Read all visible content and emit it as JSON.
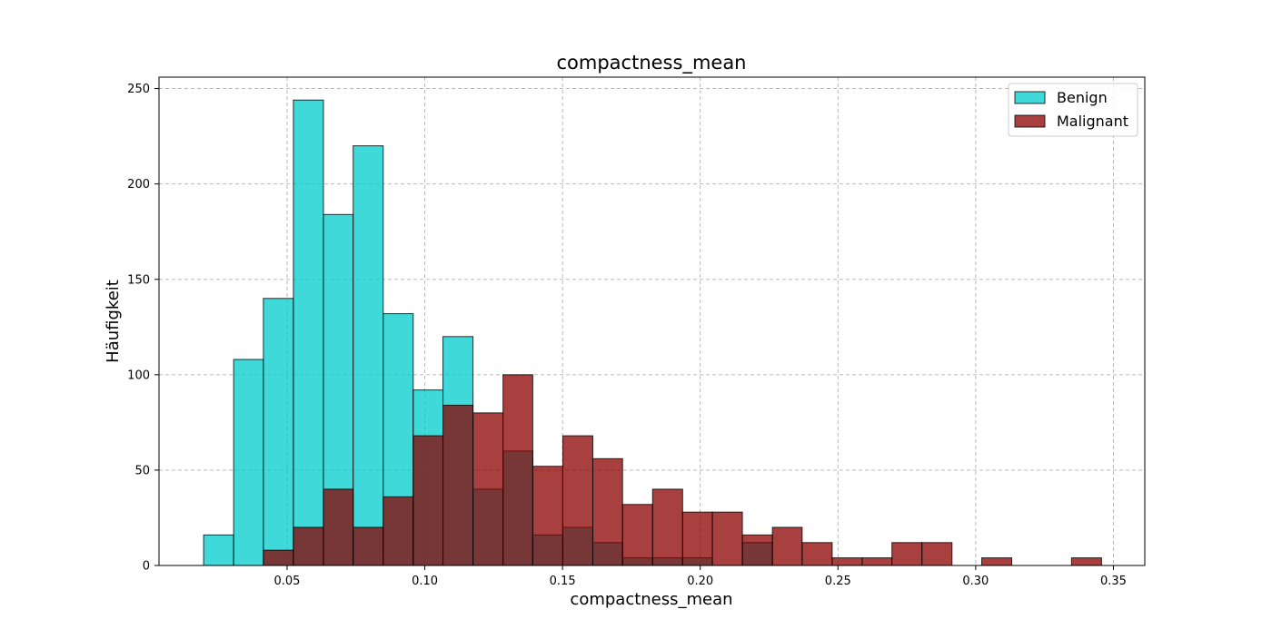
{
  "chart_data": {
    "type": "histogram",
    "title": "compactness_mean",
    "xlabel": "compactness_mean",
    "ylabel": "Häufigkeit",
    "xlim": [
      0.0035,
      0.3614
    ],
    "ylim": [
      0,
      256
    ],
    "xticks": [
      0.05,
      0.1,
      0.15,
      0.2,
      0.25,
      0.3,
      0.35
    ],
    "xtick_labels": [
      "0.05",
      "0.10",
      "0.15",
      "0.20",
      "0.25",
      "0.30",
      "0.35"
    ],
    "yticks": [
      0,
      50,
      100,
      150,
      200,
      250
    ],
    "ytick_labels": [
      "0",
      "50",
      "100",
      "150",
      "200",
      "250"
    ],
    "grid": true,
    "legend_position": "top-right",
    "series": [
      {
        "name": "Benign",
        "color": "#00cccc",
        "bins": [
          {
            "x0": 0.0197,
            "x1": 0.0306,
            "count": 16
          },
          {
            "x0": 0.0306,
            "x1": 0.0414,
            "count": 108
          },
          {
            "x0": 0.0414,
            "x1": 0.0523,
            "count": 140
          },
          {
            "x0": 0.0523,
            "x1": 0.0632,
            "count": 244
          },
          {
            "x0": 0.0632,
            "x1": 0.074,
            "count": 184
          },
          {
            "x0": 0.074,
            "x1": 0.0849,
            "count": 220
          },
          {
            "x0": 0.0849,
            "x1": 0.0958,
            "count": 132
          },
          {
            "x0": 0.0958,
            "x1": 0.1066,
            "count": 92
          },
          {
            "x0": 0.1066,
            "x1": 0.1175,
            "count": 120
          },
          {
            "x0": 0.1175,
            "x1": 0.1284,
            "count": 40
          },
          {
            "x0": 0.1284,
            "x1": 0.1392,
            "count": 60
          },
          {
            "x0": 0.1392,
            "x1": 0.1501,
            "count": 16
          },
          {
            "x0": 0.1501,
            "x1": 0.161,
            "count": 20
          },
          {
            "x0": 0.161,
            "x1": 0.1718,
            "count": 12
          },
          {
            "x0": 0.1718,
            "x1": 0.1827,
            "count": 4
          },
          {
            "x0": 0.1827,
            "x1": 0.1936,
            "count": 4
          },
          {
            "x0": 0.1936,
            "x1": 0.2044,
            "count": 4
          },
          {
            "x0": 0.2153,
            "x1": 0.2262,
            "count": 12
          }
        ]
      },
      {
        "name": "Malignant",
        "color": "#8b0000",
        "bins": [
          {
            "x0": 0.0414,
            "x1": 0.0523,
            "count": 8
          },
          {
            "x0": 0.0523,
            "x1": 0.0632,
            "count": 20
          },
          {
            "x0": 0.0632,
            "x1": 0.074,
            "count": 40
          },
          {
            "x0": 0.074,
            "x1": 0.0849,
            "count": 20
          },
          {
            "x0": 0.0849,
            "x1": 0.0958,
            "count": 36
          },
          {
            "x0": 0.0958,
            "x1": 0.1066,
            "count": 68
          },
          {
            "x0": 0.1066,
            "x1": 0.1175,
            "count": 84
          },
          {
            "x0": 0.1175,
            "x1": 0.1284,
            "count": 80
          },
          {
            "x0": 0.1284,
            "x1": 0.1392,
            "count": 100
          },
          {
            "x0": 0.1392,
            "x1": 0.1501,
            "count": 52
          },
          {
            "x0": 0.1501,
            "x1": 0.161,
            "count": 68
          },
          {
            "x0": 0.161,
            "x1": 0.1718,
            "count": 56
          },
          {
            "x0": 0.1718,
            "x1": 0.1827,
            "count": 32
          },
          {
            "x0": 0.1827,
            "x1": 0.1936,
            "count": 40
          },
          {
            "x0": 0.1936,
            "x1": 0.2044,
            "count": 28
          },
          {
            "x0": 0.2044,
            "x1": 0.2153,
            "count": 28
          },
          {
            "x0": 0.2153,
            "x1": 0.2262,
            "count": 16
          },
          {
            "x0": 0.2262,
            "x1": 0.237,
            "count": 20
          },
          {
            "x0": 0.237,
            "x1": 0.2479,
            "count": 12
          },
          {
            "x0": 0.2479,
            "x1": 0.2588,
            "count": 4
          },
          {
            "x0": 0.2588,
            "x1": 0.2696,
            "count": 4
          },
          {
            "x0": 0.2696,
            "x1": 0.2805,
            "count": 12
          },
          {
            "x0": 0.2805,
            "x1": 0.2914,
            "count": 12
          },
          {
            "x0": 0.3022,
            "x1": 0.3131,
            "count": 4
          },
          {
            "x0": 0.3348,
            "x1": 0.3457,
            "count": 4
          }
        ]
      }
    ]
  }
}
